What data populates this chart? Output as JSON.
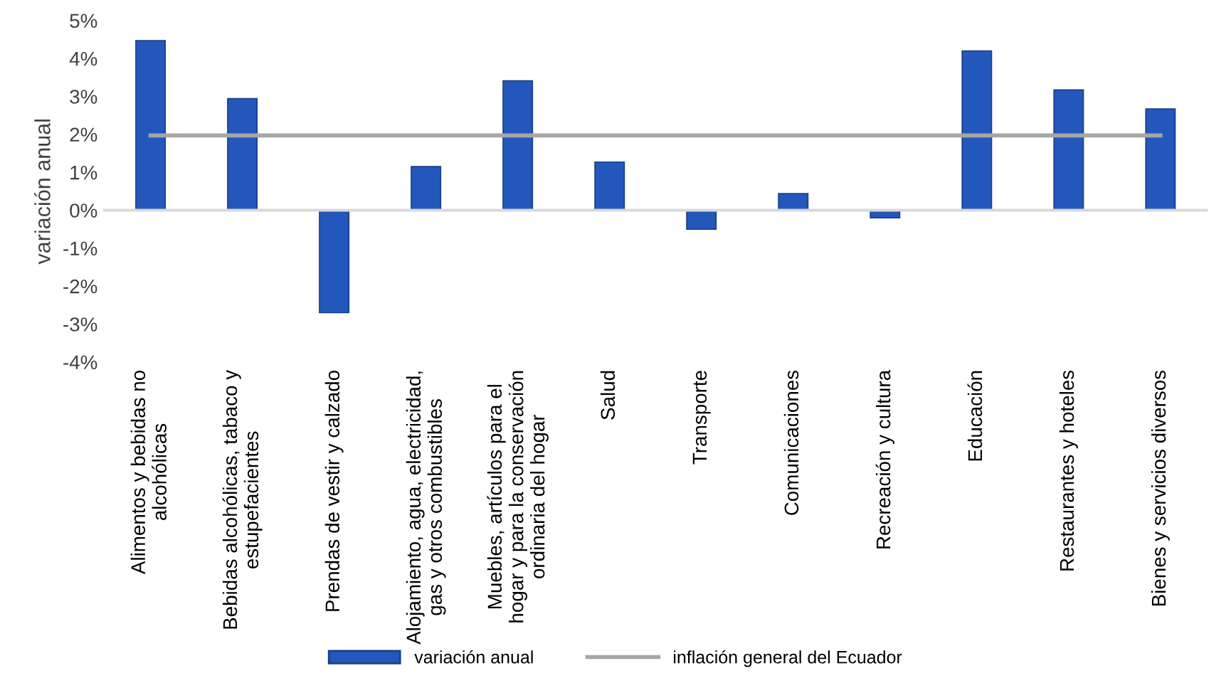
{
  "chart_data": {
    "type": "bar",
    "ylabel": "variación anual",
    "categories": [
      "Alimentos y bebidas no\nalcohólicas",
      "Bebidas alcohólicas, tabaco y\nestupefacientes",
      "Prendas de vestir y calzado",
      "Alojamiento, agua, electricidad,\ngas y otros combustibles",
      "Muebles, artículos para el\nhogar y para la conservación\nordinaria del hogar",
      "Salud",
      "Transporte",
      "Comunicaciones",
      "Recreación y cultura",
      "Educación",
      "Restaurantes y hoteles",
      "Bienes y servicios diversos"
    ],
    "series": [
      {
        "name": "variación anual",
        "color": "#2457bb",
        "values": [
          4.47,
          2.94,
          -2.7,
          1.15,
          3.41,
          1.27,
          -0.5,
          0.44,
          -0.2,
          4.2,
          3.17,
          2.67
        ]
      },
      {
        "name": "inflación general del Ecuador",
        "type": "line",
        "color": "#a6a6a6",
        "values": [
          1.97,
          1.97,
          1.97,
          1.97,
          1.97,
          1.97,
          1.97,
          1.97,
          1.97,
          1.97,
          1.97,
          1.97
        ]
      }
    ],
    "ylim": [
      -4,
      5
    ],
    "yticks": [
      {
        "value": -4,
        "label": "-4%"
      },
      {
        "value": -3,
        "label": "-3%"
      },
      {
        "value": -2,
        "label": "-2%"
      },
      {
        "value": -1,
        "label": "-1%"
      },
      {
        "value": 0,
        "label": "0%"
      },
      {
        "value": 1,
        "label": "1%"
      },
      {
        "value": 2,
        "label": "2%"
      },
      {
        "value": 3,
        "label": "3%"
      },
      {
        "value": 4,
        "label": "4%"
      },
      {
        "value": 5,
        "label": "5%"
      }
    ],
    "legend": "bottom"
  }
}
